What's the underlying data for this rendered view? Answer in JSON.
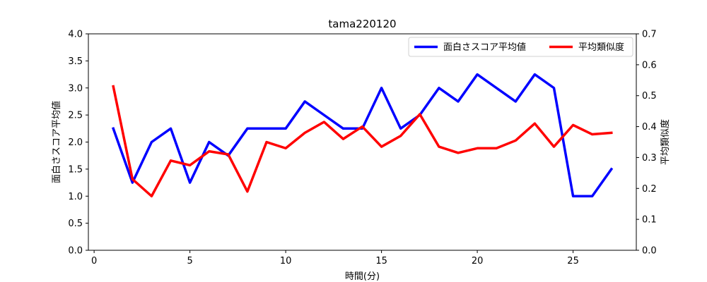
{
  "chart_data": {
    "type": "line",
    "title": "tama220120",
    "xlabel": "時間(分)",
    "ylabel_left": "面白さスコア平均値",
    "ylabel_right": "平均類似度",
    "xlim": [
      -0.3,
      28.3
    ],
    "ylim_left": [
      0,
      4.0
    ],
    "ylim_right": [
      0,
      0.7
    ],
    "xticks": [
      0,
      5,
      10,
      15,
      20,
      25
    ],
    "yticks_left": [
      "0.0",
      "0.5",
      "1.0",
      "1.5",
      "2.0",
      "2.5",
      "3.0",
      "3.5",
      "4.0"
    ],
    "yticks_right": [
      "0.0",
      "0.1",
      "0.2",
      "0.3",
      "0.4",
      "0.5",
      "0.6",
      "0.7"
    ],
    "x": [
      1,
      2,
      3,
      4,
      5,
      6,
      7,
      8,
      9,
      10,
      11,
      12,
      13,
      14,
      15,
      16,
      17,
      18,
      19,
      20,
      21,
      22,
      23,
      24,
      25,
      26,
      27
    ],
    "series": [
      {
        "name": "面白さスコア平均値",
        "axis": "left",
        "color": "#0000ff",
        "values": [
          2.25,
          1.25,
          2.0,
          2.25,
          1.25,
          2.0,
          1.75,
          2.25,
          2.25,
          2.25,
          2.75,
          2.5,
          2.25,
          2.25,
          3.0,
          2.25,
          2.5,
          3.0,
          2.75,
          3.25,
          3.0,
          2.75,
          3.25,
          3.0,
          1.0,
          1.0,
          1.5
        ]
      },
      {
        "name": "平均類似度",
        "axis": "right",
        "color": "#ff0000",
        "values": [
          0.53,
          0.23,
          0.175,
          0.29,
          0.275,
          0.32,
          0.31,
          0.19,
          0.35,
          0.33,
          0.38,
          0.415,
          0.36,
          0.4,
          0.335,
          0.37,
          0.44,
          0.335,
          0.315,
          0.33,
          0.33,
          0.355,
          0.41,
          0.335,
          0.405,
          0.375,
          0.38
        ]
      }
    ],
    "legend_position": "top-right",
    "grid": false
  }
}
